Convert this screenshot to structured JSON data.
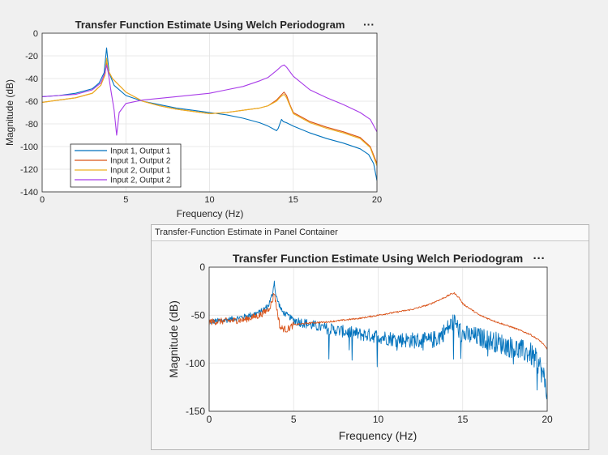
{
  "panel": {
    "title": "Transfer-Function Estimate in Panel Container"
  },
  "toolbar_glyph": "···",
  "chart_data": [
    {
      "type": "line",
      "title": "Transfer Function Estimate Using Welch Periodogram",
      "xlabel": "Frequency (Hz)",
      "ylabel": "Magnitude (dB)",
      "xlim": [
        0,
        20
      ],
      "ylim": [
        -140,
        0
      ],
      "xticks": [
        0,
        5,
        10,
        15,
        20
      ],
      "yticks": [
        0,
        -20,
        -40,
        -60,
        -80,
        -100,
        -120,
        -140
      ],
      "grid": true,
      "legend_position": "bottom-left",
      "series": [
        {
          "name": "Input 1, Output 1",
          "color": "#0072BD",
          "x": [
            0,
            1,
            2,
            3,
            3.4,
            3.7,
            3.85,
            4.0,
            4.3,
            5,
            6,
            7,
            8,
            9,
            10,
            11,
            12,
            13,
            13.5,
            14,
            14.1,
            14.2,
            14.3,
            14.4,
            14.6,
            15,
            16,
            17,
            18,
            19,
            19.5,
            19.8,
            20
          ],
          "y": [
            -56,
            -55,
            -53,
            -49,
            -44,
            -35,
            -13,
            -35,
            -46,
            -55,
            -60,
            -63,
            -66,
            -68,
            -70,
            -72,
            -75,
            -79,
            -82,
            -86,
            -84,
            -80,
            -76,
            -78,
            -79,
            -82,
            -88,
            -93,
            -97,
            -102,
            -107,
            -115,
            -130
          ]
        },
        {
          "name": "Input 1, Output 2",
          "color": "#D95319",
          "x": [
            0,
            1,
            2,
            3,
            3.5,
            3.75,
            3.85,
            3.95,
            4.2,
            5,
            6,
            7,
            8,
            9,
            10,
            11,
            12,
            13,
            13.5,
            14,
            14.25,
            14.45,
            14.6,
            14.8,
            15,
            16,
            17,
            18,
            19,
            19.6,
            20
          ],
          "y": [
            -61,
            -59,
            -57,
            -53,
            -46,
            -37,
            -25,
            -33,
            -40,
            -52,
            -60,
            -64,
            -67,
            -69,
            -71,
            -70,
            -68,
            -66,
            -64,
            -59,
            -55,
            -52,
            -55,
            -63,
            -70,
            -78,
            -83,
            -87,
            -92,
            -100,
            -115
          ]
        },
        {
          "name": "Input 2, Output 1",
          "color": "#EDB120",
          "x": [
            0,
            1,
            2,
            3,
            3.5,
            3.75,
            3.85,
            3.95,
            4.2,
            5,
            6,
            7,
            8,
            9,
            10,
            11,
            12,
            13,
            13.5,
            14,
            14.25,
            14.45,
            14.6,
            14.8,
            15,
            16,
            17,
            18,
            19,
            19.6,
            20
          ],
          "y": [
            -61,
            -59,
            -57,
            -53,
            -46,
            -37,
            -22,
            -33,
            -40,
            -52,
            -60,
            -64,
            -67,
            -69,
            -71,
            -70,
            -68,
            -66,
            -64,
            -60,
            -56,
            -54,
            -57,
            -64,
            -71,
            -79,
            -84,
            -88,
            -93,
            -101,
            -117
          ]
        },
        {
          "name": "Input 2, Output 2",
          "color": "#A83BE8",
          "x": [
            0,
            1,
            2,
            3,
            3.5,
            3.75,
            3.85,
            3.95,
            4.1,
            4.3,
            4.45,
            4.6,
            5,
            6,
            8,
            10,
            11,
            12,
            13,
            13.5,
            14,
            14.3,
            14.45,
            14.6,
            15,
            16,
            17,
            18,
            19,
            19.6,
            20
          ],
          "y": [
            -56,
            -55,
            -54,
            -50,
            -44,
            -35,
            -28,
            -35,
            -50,
            -68,
            -90,
            -70,
            -62,
            -59,
            -56,
            -53,
            -50,
            -47,
            -42,
            -39,
            -33,
            -29,
            -28,
            -30,
            -38,
            -50,
            -57,
            -63,
            -70,
            -76,
            -87
          ]
        }
      ]
    },
    {
      "type": "line",
      "title": "Transfer Function Estimate Using Welch Periodogram",
      "xlabel": "Frequency (Hz)",
      "ylabel": "Magnitude (dB)",
      "xlim": [
        0,
        20
      ],
      "ylim": [
        -150,
        0
      ],
      "xticks": [
        0,
        5,
        10,
        15,
        20
      ],
      "yticks": [
        0,
        -50,
        -100,
        -150
      ],
      "grid": true,
      "series": [
        {
          "color": "#0072BD",
          "x": [
            0,
            1,
            2,
            3,
            3.5,
            3.75,
            3.85,
            3.95,
            4.3,
            5,
            6,
            7,
            8,
            9,
            10,
            11,
            12,
            13,
            13.5,
            14,
            14.3,
            14.5,
            14.8,
            15,
            16,
            17,
            18,
            19,
            19.5,
            19.8,
            20
          ],
          "y": [
            -57,
            -55,
            -52,
            -47,
            -40,
            -28,
            -14,
            -30,
            -46,
            -55,
            -60,
            -64,
            -67,
            -70,
            -72,
            -75,
            -76,
            -77,
            -74,
            -66,
            -60,
            -56,
            -66,
            -70,
            -73,
            -78,
            -84,
            -90,
            -100,
            -115,
            -132
          ]
        },
        {
          "color": "#D95319",
          "x": [
            0,
            1,
            2,
            3,
            3.5,
            3.75,
            3.85,
            3.95,
            4.2,
            4.6,
            5,
            6,
            7,
            8,
            9,
            10,
            11,
            12,
            13,
            13.5,
            14,
            14.3,
            14.5,
            14.8,
            15,
            16,
            17,
            18,
            19,
            19.6,
            20
          ],
          "y": [
            -57,
            -56,
            -55,
            -50,
            -44,
            -35,
            -25,
            -38,
            -63,
            -65,
            -60,
            -58,
            -57,
            -55,
            -53,
            -50,
            -47,
            -44,
            -39,
            -35,
            -31,
            -28,
            -27,
            -32,
            -38,
            -50,
            -57,
            -63,
            -70,
            -77,
            -85
          ]
        }
      ]
    }
  ]
}
